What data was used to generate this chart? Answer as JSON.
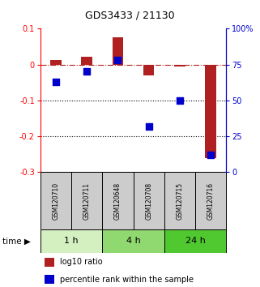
{
  "title": "GDS3433 / 21130",
  "samples": [
    "GSM120710",
    "GSM120711",
    "GSM120648",
    "GSM120708",
    "GSM120715",
    "GSM120716"
  ],
  "log10_ratio": [
    0.012,
    0.022,
    0.075,
    -0.03,
    -0.005,
    -0.26
  ],
  "percentile_rank": [
    63,
    70,
    78,
    32,
    50,
    12
  ],
  "time_groups": [
    {
      "label": "1 h",
      "color": "#d4f0c0",
      "start": 0,
      "end": 2
    },
    {
      "label": "4 h",
      "color": "#90d870",
      "start": 2,
      "end": 4
    },
    {
      "label": "24 h",
      "color": "#50c830",
      "start": 4,
      "end": 6
    }
  ],
  "ylim_left": [
    -0.3,
    0.1
  ],
  "ylim_right": [
    0,
    100
  ],
  "yticks_left": [
    -0.3,
    -0.2,
    -0.1,
    0.0,
    0.1
  ],
  "ytick_labels_left": [
    "-0.3",
    "-0.2",
    "-0.1",
    "0",
    "0.1"
  ],
  "yticks_right": [
    0,
    25,
    50,
    75,
    100
  ],
  "ytick_labels_right": [
    "0",
    "25",
    "50",
    "75",
    "100%"
  ],
  "hlines": [
    -0.1,
    -0.2
  ],
  "bar_color": "#b02020",
  "dot_color": "#0000cc",
  "bar_width": 0.35,
  "dot_size": 40,
  "sample_box_color": "#cccccc",
  "background_color": "#ffffff",
  "n_samples": 6
}
